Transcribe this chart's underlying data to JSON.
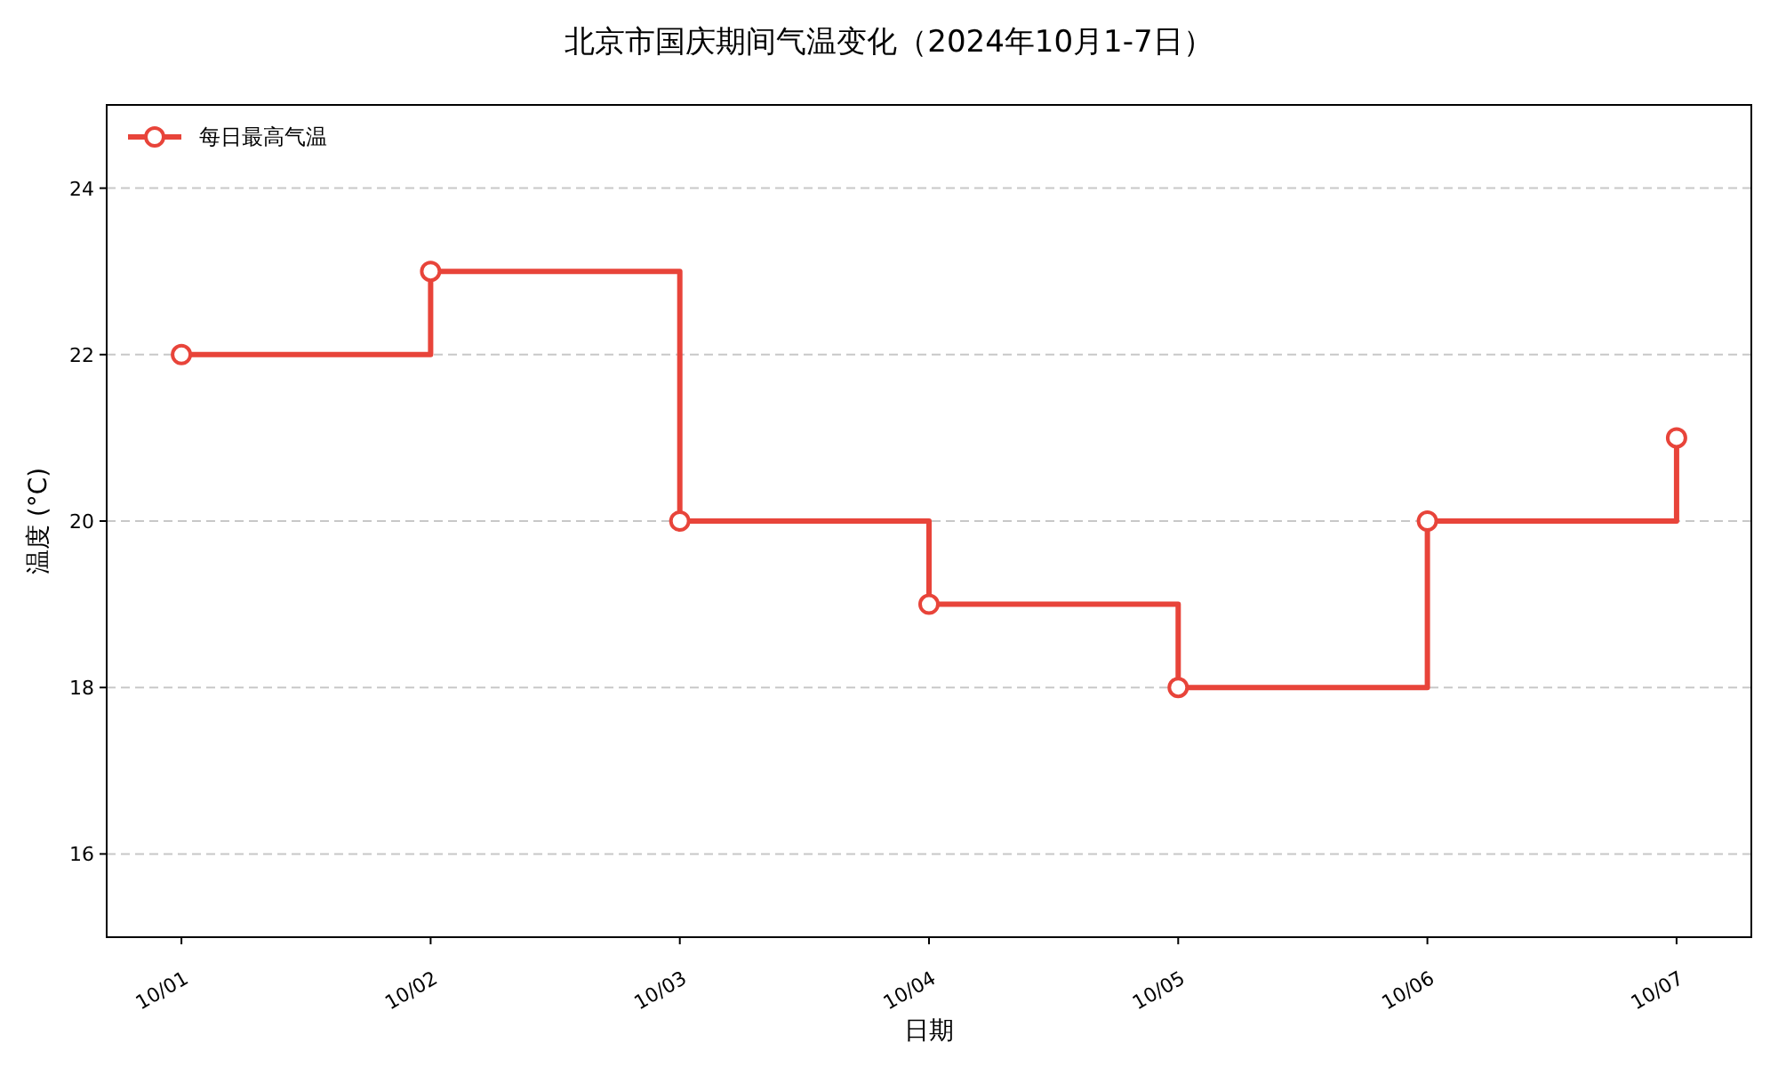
{
  "chart_data": {
    "type": "step",
    "title": "北京市国庆期间气温变化（2024年10月1-7日）",
    "xlabel": "日期",
    "ylabel": "温度 (°C)",
    "categories": [
      "10/01",
      "10/02",
      "10/03",
      "10/04",
      "10/05",
      "10/06",
      "10/07"
    ],
    "series": [
      {
        "name": "每日最高气温",
        "color": "#e8443a",
        "values": [
          22,
          23,
          20,
          19,
          18,
          20,
          21
        ]
      }
    ],
    "ylim": [
      15,
      25
    ],
    "yticks": [
      16,
      18,
      20,
      22,
      24
    ],
    "grid": "y",
    "legend": "top left",
    "marker": "circle",
    "line_style": "solid"
  }
}
